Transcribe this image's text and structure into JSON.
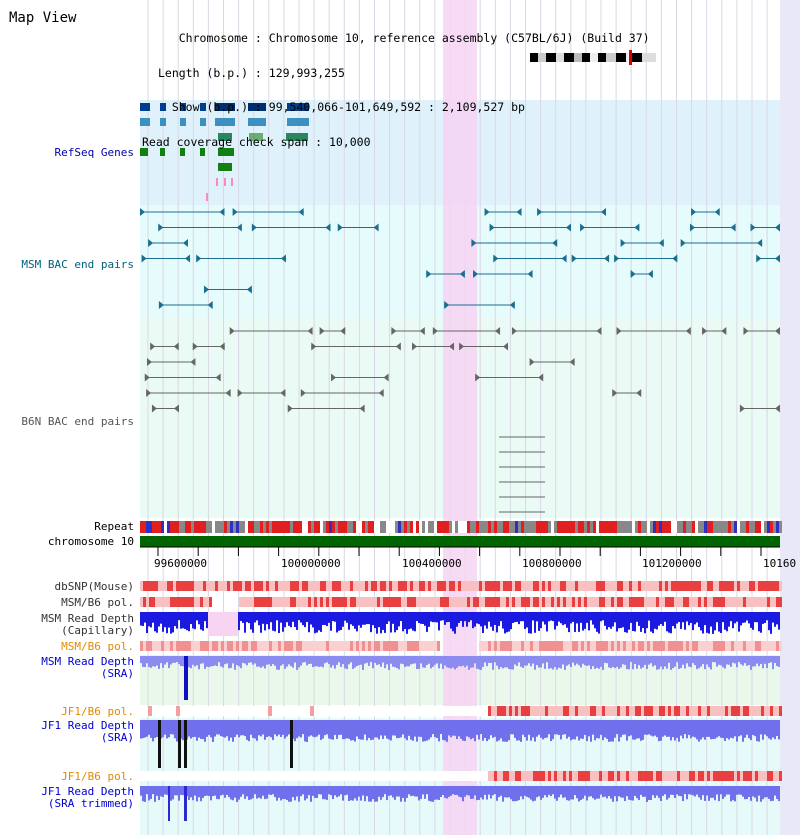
{
  "title": "Map View",
  "header": {
    "chromosome_label": "Chromosome",
    "chromosome_value": "Chromosome 10, reference assembly (C57BL/6J) (Build 37)",
    "length_label": "Length (b.p.)",
    "length_value": "129,993,255",
    "show_label": "Show (b.p.)",
    "show_value": "99,540,066-101,649,592 : 2,109,527 bp",
    "span_label": "Read coverage check span",
    "span_value": "10,000"
  },
  "tracks": {
    "refseq": "RefSeq Genes",
    "msm_bac": "MSM BAC end pairs",
    "b6n_bac": "B6N BAC end pairs",
    "repeat": "Repeat",
    "chromosome": "chromosome 10",
    "dbsnp": "dbSNP(Mouse)",
    "msm_b6_pol": "MSM/B6 pol.",
    "msm_read_depth_cap_1": "MSM Read Depth",
    "msm_read_depth_cap_2": "(Capillary)",
    "msm_b6_pol_2": "MSM/B6 pol.",
    "msm_read_depth_sra_1": "MSM Read Depth",
    "msm_read_depth_sra_2": "(SRA)",
    "jf1_b6_pol": "JF1/B6 pol.",
    "jf1_read_depth_sra_1": "JF1 Read Depth",
    "jf1_read_depth_sra_2": "(SRA)",
    "jf1_b6_pol_2": "JF1/B6 pol.",
    "jf1_read_depth_trim_1": "JF1 Read Depth",
    "jf1_read_depth_trim_2": "(SRA trimmed)"
  },
  "axis": {
    "ticks": [
      "99600000",
      "100000000",
      "100400000",
      "100800000",
      "101200000",
      "10160"
    ]
  },
  "colors": {
    "refseq_label": "#0000aa",
    "msm_label": "#005f7f",
    "b6n_label": "#555555",
    "orange_label": "#e08a00",
    "blue_label": "#0000cc",
    "highlight": "#f6d4f2",
    "chromosome_bar": "#006400"
  }
}
